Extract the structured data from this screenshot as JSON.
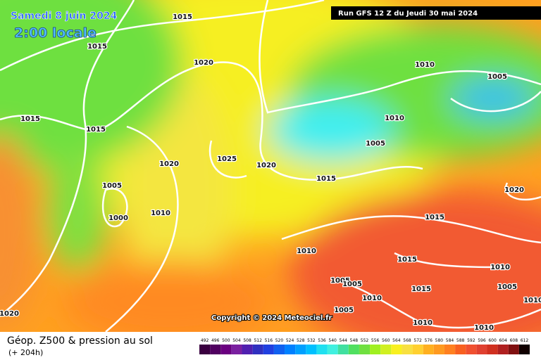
{
  "header": {
    "date": "Samedi 8 juin 2024",
    "time": "2:00 locale",
    "run": "Run GFS 12 Z du Jeudi 30 mai 2024"
  },
  "copyright": "Copyright © 2024 Meteociel.fr",
  "footer": {
    "title": "Géop. Z500 & pression au sol",
    "lead": "(+ 204h)"
  },
  "scale": [
    492,
    496,
    500,
    504,
    508,
    512,
    516,
    520,
    524,
    528,
    532,
    536,
    540,
    544,
    548,
    552,
    556,
    560,
    564,
    568,
    572,
    576,
    580,
    584,
    588,
    592,
    596,
    600,
    604,
    608,
    612
  ],
  "isobar_labels": [
    1015,
    1015,
    1020,
    1010,
    1005,
    1015,
    1015,
    1010,
    1005,
    1020,
    1025,
    1020,
    1015,
    1005,
    1020,
    1010,
    1000,
    1015,
    1010,
    1015,
    1010,
    1005,
    1005,
    1015,
    1010,
    1005,
    1005,
    1010,
    1010,
    1020,
    1010
  ]
}
